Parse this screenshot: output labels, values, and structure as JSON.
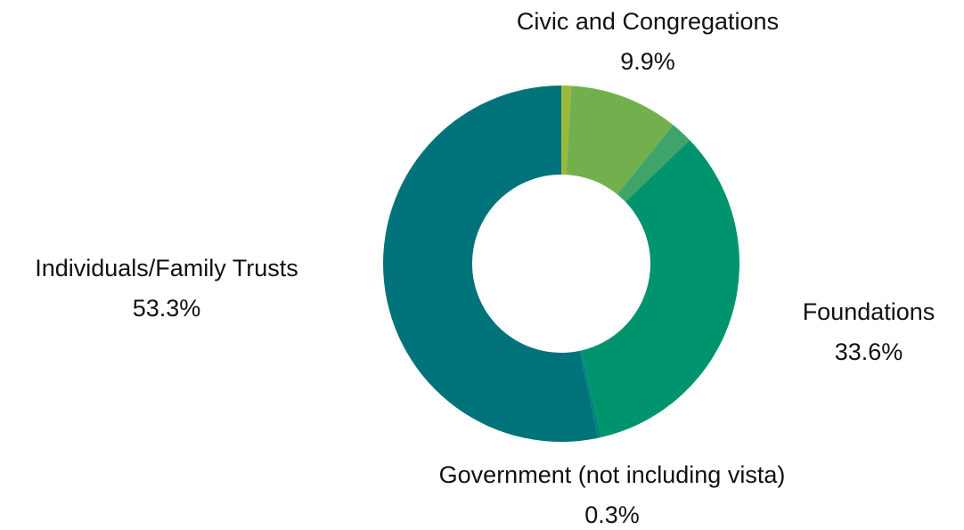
{
  "chart_data": {
    "type": "pie",
    "donut": true,
    "start_angle_deg": 0,
    "direction": "clockwise",
    "slices": [
      {
        "label": "",
        "value": 0.9,
        "percent_label": "",
        "color": "#9cb83a"
      },
      {
        "label": "Civic and Congregations",
        "value": 9.9,
        "percent_label": "9.9%",
        "color": "#72b04e"
      },
      {
        "label": "",
        "value": 2.0,
        "percent_label": "",
        "color": "#3fa46a"
      },
      {
        "label": "Foundations",
        "value": 33.6,
        "percent_label": "33.6%",
        "color": "#00946e"
      },
      {
        "label": "Government (not including vista)",
        "value": 0.3,
        "percent_label": "0.3%",
        "color": "#00837a"
      },
      {
        "label": "Individuals/Family Trusts",
        "value": 53.3,
        "percent_label": "53.3%",
        "color": "#00737a"
      }
    ]
  }
}
